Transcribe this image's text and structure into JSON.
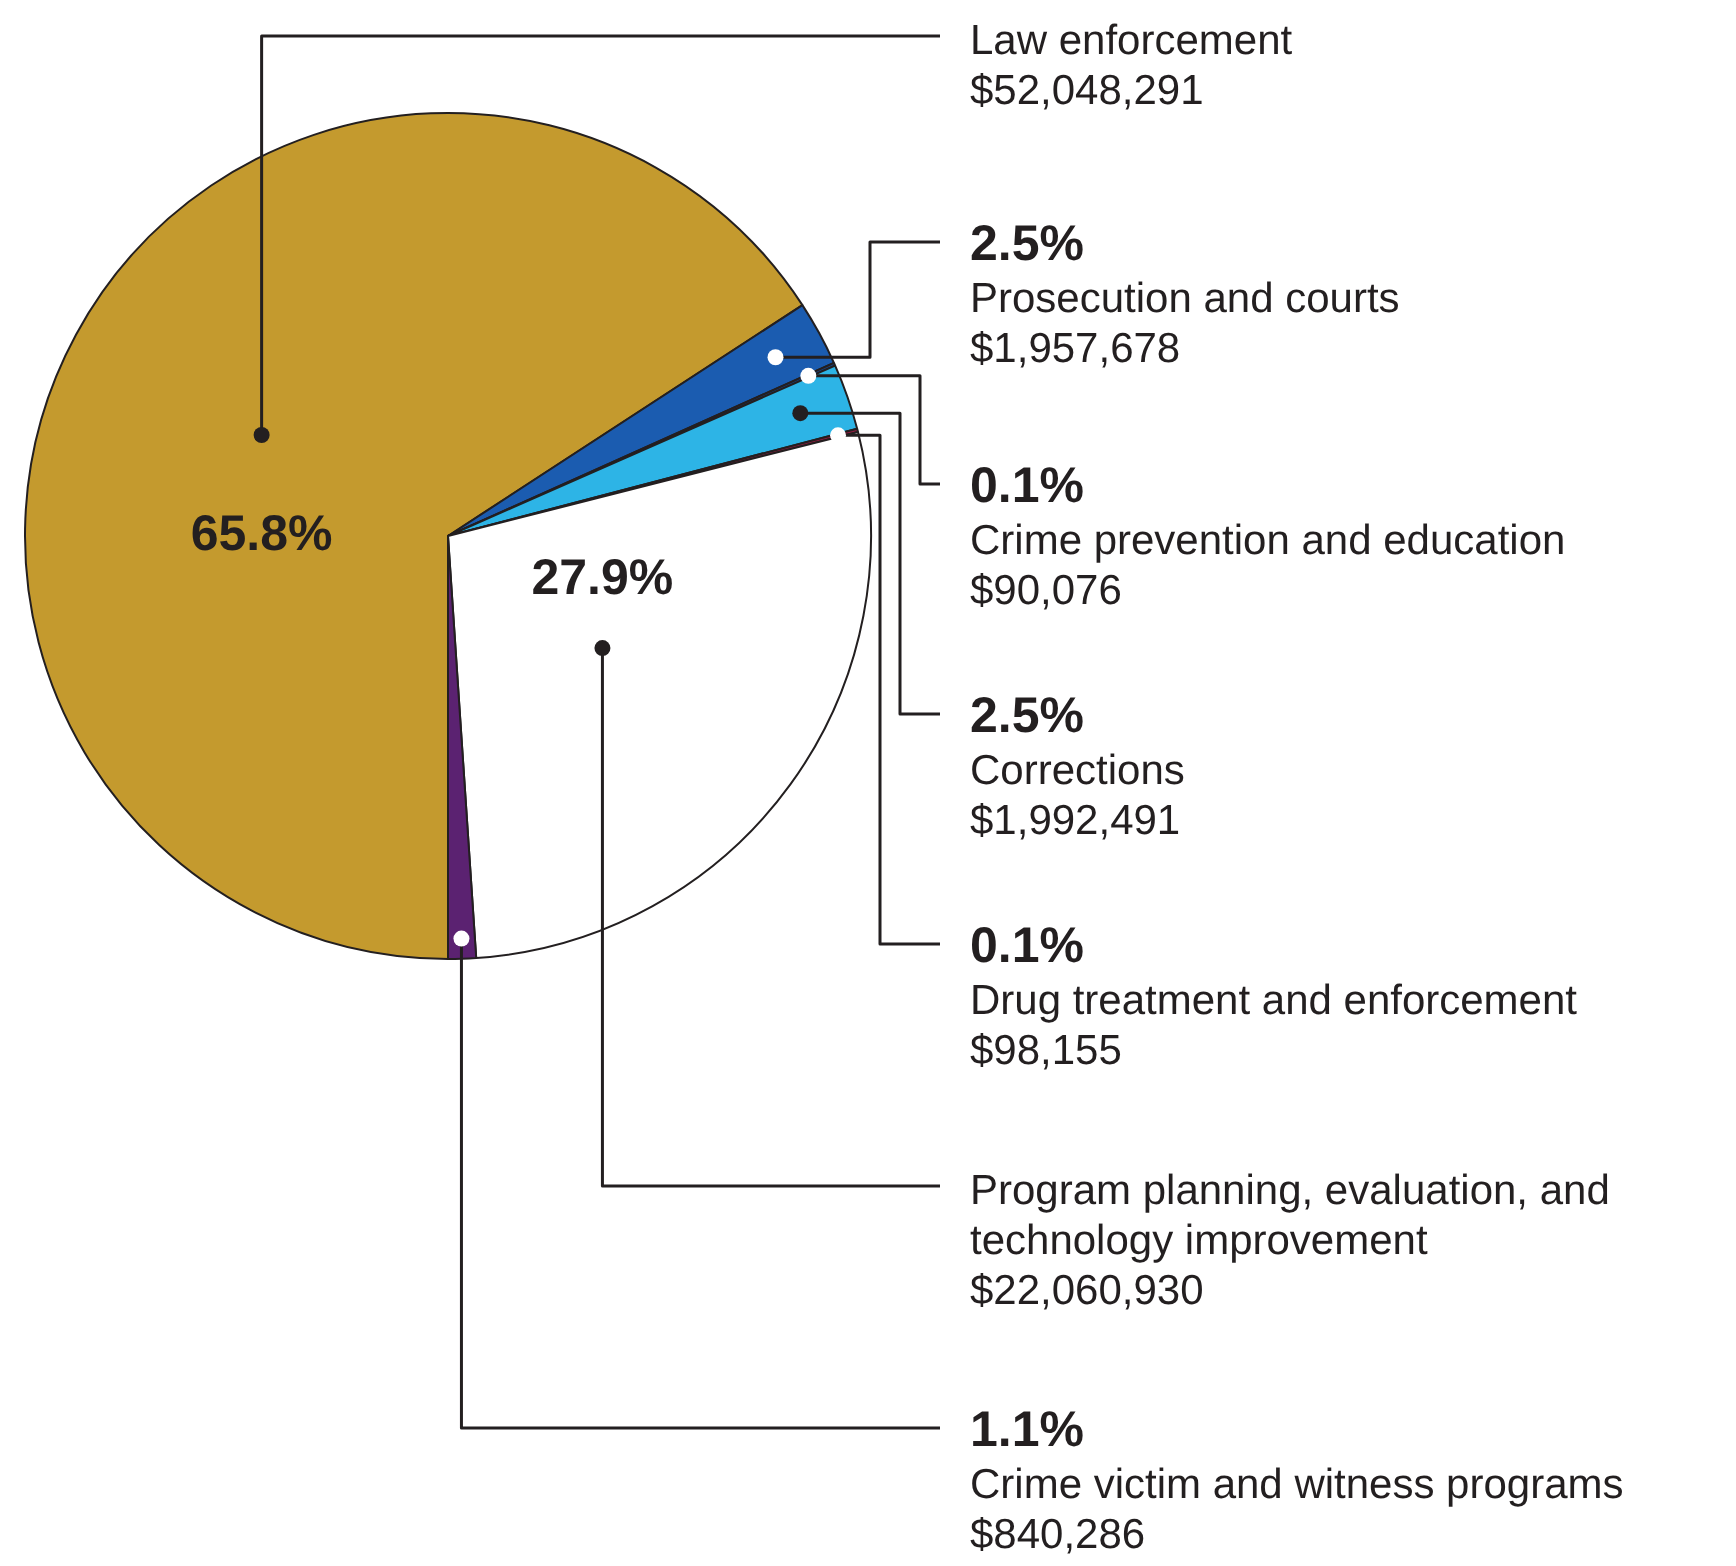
{
  "chart_data": {
    "type": "pie",
    "categories": [
      "Law enforcement",
      "Prosecution and courts",
      "Crime prevention and education",
      "Corrections",
      "Drug treatment and enforcement",
      "Program planning, evaluation, and technology improvement",
      "Crime victim and witness programs"
    ],
    "values": [
      52048291,
      1957678,
      90076,
      1992491,
      98155,
      22060930,
      840286
    ],
    "colors": [
      "#c49a2e",
      "#1b5cb0",
      "#1a3f7a",
      "#2db4e6",
      "#8e1b3e",
      "#ffffff",
      "#5b2271"
    ],
    "value_labels": [
      "$52,048,291",
      "$1,957,678",
      "$90,076",
      "$1,992,491",
      "$98,155",
      "$22,060,930",
      "$840,286"
    ],
    "annotations": [
      {
        "text": "65.8%",
        "x": "Law enforcement"
      },
      {
        "text": "2.5%",
        "x": "Prosecution and courts"
      },
      {
        "text": "0.1%",
        "x": "Crime prevention and education"
      },
      {
        "text": "2.5%",
        "x": "Corrections"
      },
      {
        "text": "0.1%",
        "x": "Drug treatment and enforcement"
      },
      {
        "text": "27.9%",
        "x": "Program planning, evaluation, and technology improvement"
      },
      {
        "text": "1.1%",
        "x": "Crime victim and witness programs"
      }
    ]
  }
}
